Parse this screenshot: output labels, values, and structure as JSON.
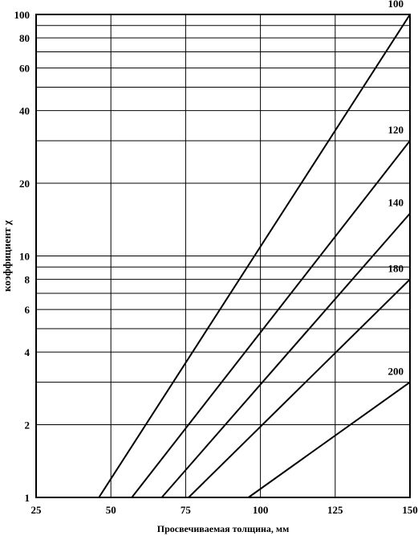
{
  "chart_data": {
    "type": "line",
    "title": "",
    "xlabel": "Просвечиваемая толщина, мм",
    "ylabel": "коэффициент χ",
    "xlim": [
      25,
      150
    ],
    "ylim": [
      1,
      100
    ],
    "y_scale": "log",
    "grid": true,
    "x_ticks": [
      {
        "value": 25,
        "label": "25"
      },
      {
        "value": 50,
        "label": "50"
      },
      {
        "value": 75,
        "label": "75"
      },
      {
        "value": 100,
        "label": "100"
      },
      {
        "value": 125,
        "label": "125"
      },
      {
        "value": 150,
        "label": "150"
      }
    ],
    "y_ticks": [
      {
        "value": 1,
        "label": "1"
      },
      {
        "value": 2,
        "label": "2"
      },
      {
        "value": 4,
        "label": "4"
      },
      {
        "value": 6,
        "label": "6"
      },
      {
        "value": 8,
        "label": "8"
      },
      {
        "value": 10,
        "label": "10"
      },
      {
        "value": 20,
        "label": "20"
      },
      {
        "value": 40,
        "label": "40"
      },
      {
        "value": 60,
        "label": "60"
      },
      {
        "value": 80,
        "label": "80"
      },
      {
        "value": 100,
        "label": "100"
      }
    ],
    "y_gridlines": [
      1,
      2,
      3,
      4,
      5,
      6,
      7,
      8,
      9,
      10,
      20,
      30,
      40,
      50,
      60,
      70,
      80,
      90,
      100
    ],
    "series": [
      {
        "name": "100",
        "points": [
          [
            46,
            1
          ],
          [
            150,
            100
          ]
        ]
      },
      {
        "name": "120",
        "points": [
          [
            57,
            1
          ],
          [
            150,
            30
          ]
        ]
      },
      {
        "name": "140",
        "points": [
          [
            67,
            1
          ],
          [
            150,
            15
          ]
        ]
      },
      {
        "name": "180",
        "points": [
          [
            76,
            1
          ],
          [
            150,
            8
          ]
        ]
      },
      {
        "name": "200",
        "points": [
          [
            96,
            1
          ],
          [
            150,
            3
          ]
        ]
      }
    ]
  }
}
